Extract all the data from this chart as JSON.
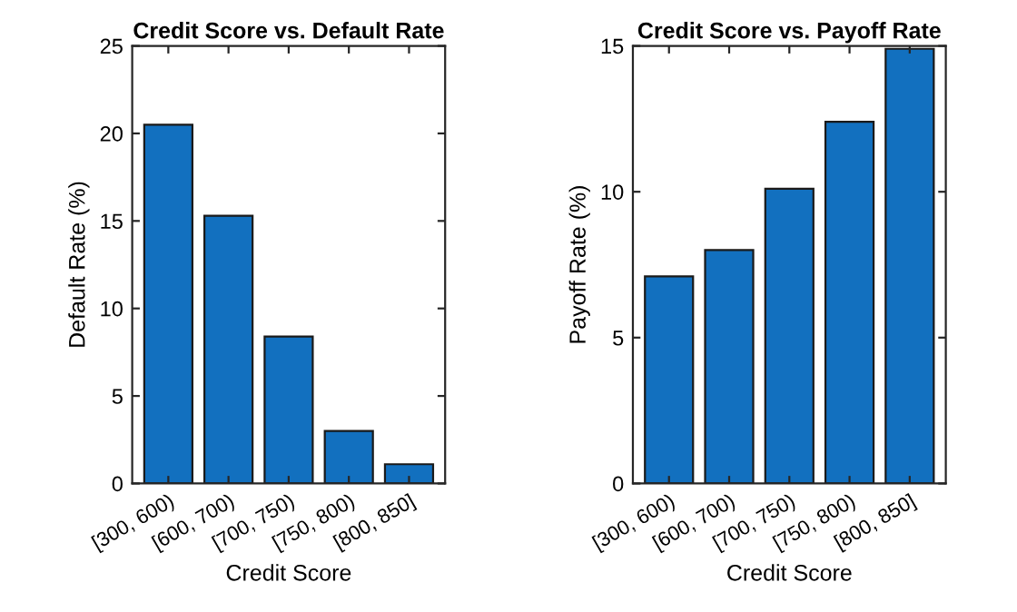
{
  "chart_data": [
    {
      "type": "bar",
      "title": "Credit Score vs. Default Rate",
      "xlabel": "Credit Score",
      "ylabel": "Default Rate (%)",
      "categories": [
        "[300, 600)",
        "[600, 700)",
        "[700, 750)",
        "[750, 800)",
        "[800, 850]"
      ],
      "values": [
        20.5,
        15.3,
        8.4,
        3.0,
        1.1
      ],
      "color": "#1270bf",
      "ylim": [
        0,
        25
      ],
      "yticks": [
        0,
        5,
        10,
        15,
        20,
        25
      ],
      "grid": false
    },
    {
      "type": "bar",
      "title": "Credit Score vs. Payoff Rate",
      "xlabel": "Credit Score",
      "ylabel": "Payoff Rate (%)",
      "categories": [
        "[300, 600)",
        "[600, 700)",
        "[700, 750)",
        "[750, 800)",
        "[800, 850]"
      ],
      "values": [
        7.1,
        8.0,
        10.1,
        12.4,
        14.9
      ],
      "color": "#1270bf",
      "ylim": [
        0,
        15
      ],
      "yticks": [
        0,
        5,
        10,
        15
      ],
      "grid": false
    }
  ]
}
